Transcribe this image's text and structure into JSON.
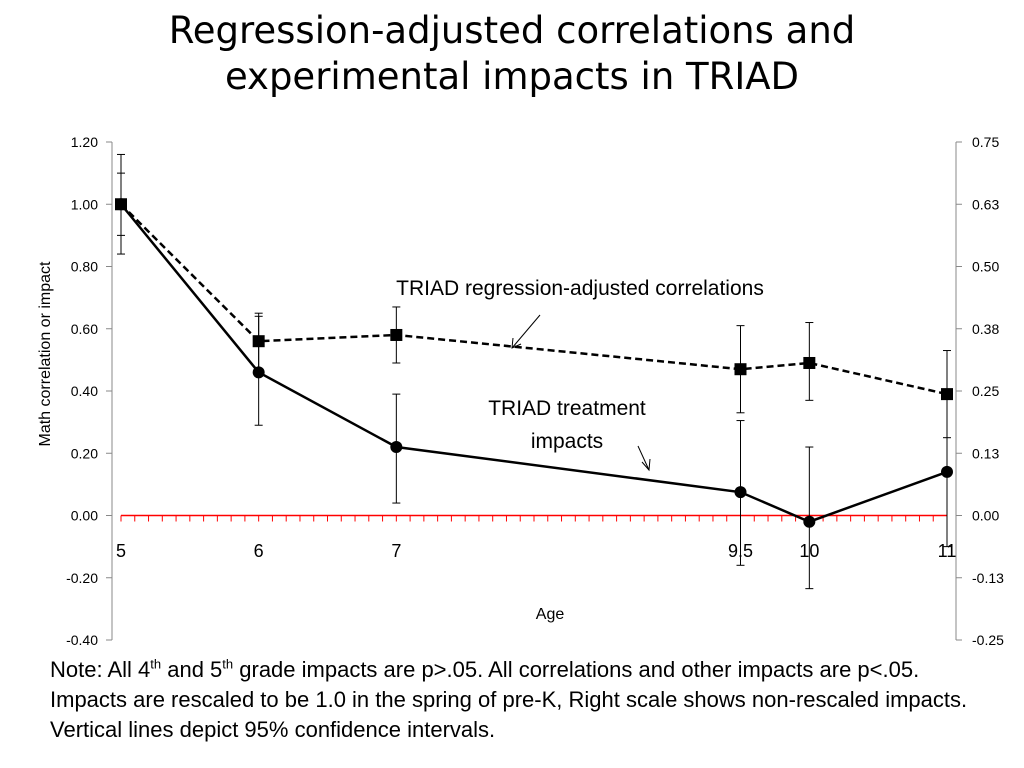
{
  "title": {
    "line1": "Regression-adjusted correlations and",
    "line2": "experimental impacts in TRIAD"
  },
  "chart_data": {
    "type": "line",
    "title": "Regression-adjusted correlations and experimental impacts in TRIAD",
    "xlabel": "Age",
    "ylabel": "Math correlation or impact",
    "ylim": [
      -0.4,
      1.2
    ],
    "xlim": [
      5,
      11
    ],
    "y_ticks": [
      "1.20",
      "1.00",
      "0.80",
      "0.60",
      "0.40",
      "0.20",
      "0.00",
      "-0.20",
      "-0.40"
    ],
    "y_tick_values": [
      1.2,
      1.0,
      0.8,
      0.6,
      0.4,
      0.2,
      0.0,
      -0.2,
      -0.4
    ],
    "y2_ticks": [
      "0.75",
      "0.63",
      "0.50",
      "0.38",
      "0.25",
      "0.13",
      "0.00",
      "-0.13",
      "-0.25"
    ],
    "x_ticks": [
      "5",
      "6",
      "7",
      "9.5",
      "10",
      "11"
    ],
    "x_tick_values": [
      5,
      6,
      7,
      9.5,
      10,
      11
    ],
    "series": [
      {
        "name": "TRIAD regression-adjusted correlations",
        "style": "dashed",
        "marker": "square",
        "x": [
          5,
          6,
          7,
          9.5,
          10,
          11
        ],
        "y": [
          1.0,
          0.56,
          0.58,
          0.47,
          0.49,
          0.39
        ],
        "ci_low": [
          0.9,
          0.47,
          0.49,
          0.33,
          0.37,
          0.25
        ],
        "ci_high": [
          1.1,
          0.65,
          0.67,
          0.61,
          0.62,
          0.53
        ]
      },
      {
        "name": "TRIAD treatment impacts",
        "style": "solid",
        "marker": "circle",
        "x": [
          5,
          6,
          7,
          9.5,
          10,
          11
        ],
        "y": [
          1.0,
          0.46,
          0.22,
          0.075,
          -0.02,
          0.14
        ],
        "ci_low": [
          0.84,
          0.29,
          0.04,
          -0.16,
          -0.235,
          -0.1
        ],
        "ci_high": [
          1.16,
          0.64,
          0.39,
          0.305,
          0.22,
          0.38
        ]
      }
    ],
    "annotations": [
      {
        "text": "TRIAD regression-adjusted correlations"
      },
      {
        "text_line1": "TRIAD treatment",
        "text_line2": "impacts"
      }
    ],
    "reference_line": {
      "y": 0,
      "color": "#ff0000"
    },
    "legend": "none"
  },
  "note": {
    "prefix": "Note: All 4",
    "sup1": "th",
    "mid1": " and 5",
    "sup2": "th",
    "rest": " grade impacts are p>.05. All correlations and other impacts are p<.05. Impacts are rescaled to be 1.0 in the spring of pre-K, Right scale shows non-rescaled impacts. Vertical lines depict 95% confidence intervals."
  }
}
